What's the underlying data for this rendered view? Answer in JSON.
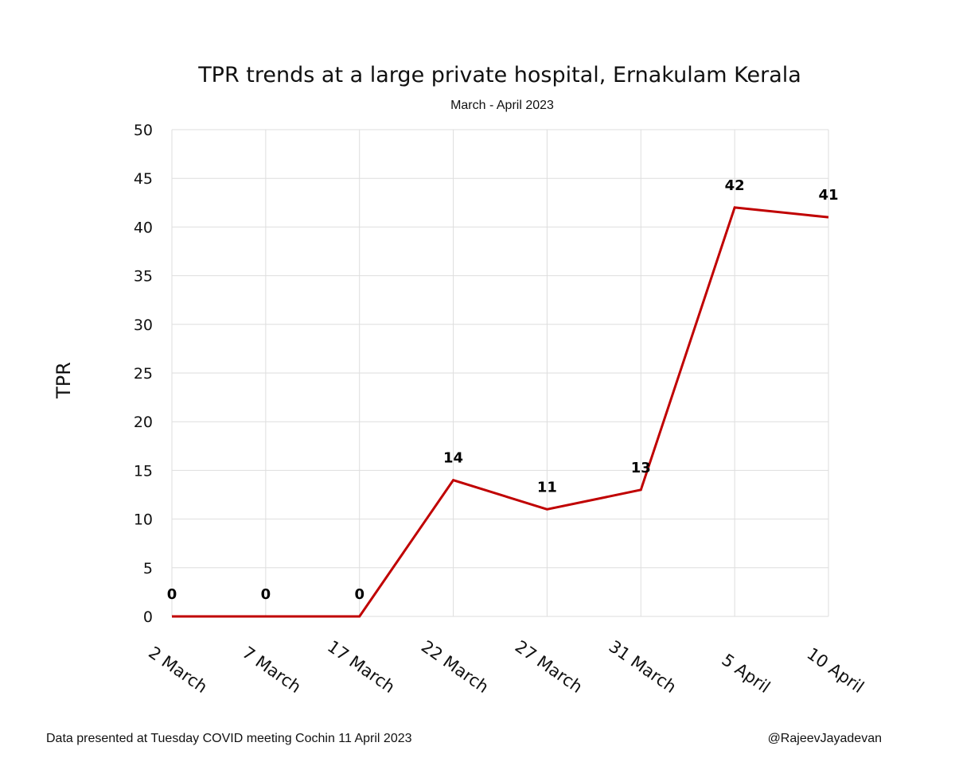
{
  "chart_data": {
    "type": "line",
    "title": "TPR trends at a large private hospital, Ernakulam Kerala",
    "subtitle": "March - April 2023",
    "xlabel": "",
    "ylabel": "TPR",
    "categories": [
      "2 March",
      "7 March",
      "17 March",
      "22 March",
      "27 March",
      "31 March",
      "5 April",
      "10 April"
    ],
    "series": [
      {
        "values": [
          0,
          0,
          0,
          14,
          11,
          13,
          42,
          41
        ],
        "color": "#c00000"
      }
    ],
    "data_labels": [
      "0",
      "0",
      "0",
      "14",
      "11",
      "13",
      "42",
      "41"
    ],
    "yticks": [
      "0",
      "5",
      "10",
      "15",
      "20",
      "25",
      "30",
      "35",
      "40",
      "45",
      "50"
    ],
    "ylim": [
      0,
      50
    ],
    "grid": true,
    "legend": "none"
  },
  "footer": {
    "source_note": "Data presented at Tuesday COVID meeting Cochin 11 April 2023",
    "credit": "@RajeevJayadevan"
  }
}
